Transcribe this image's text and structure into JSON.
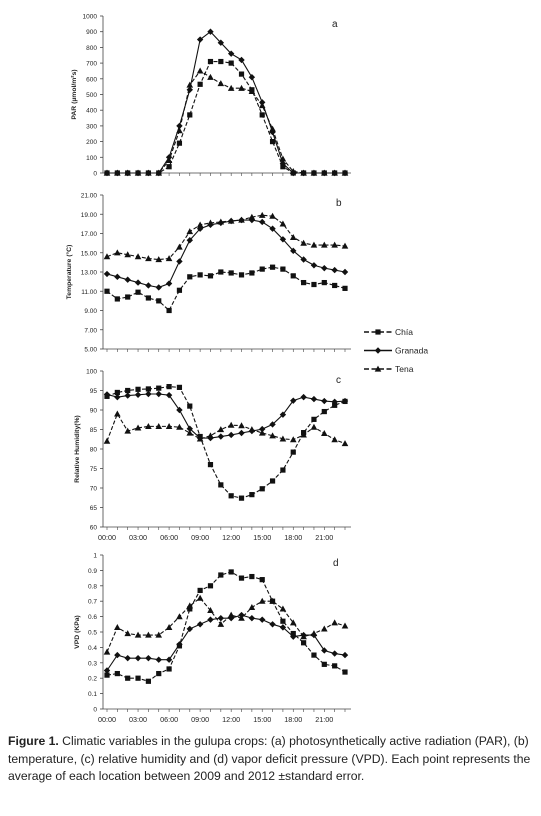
{
  "chart_data": [
    {
      "type": "line",
      "panel_label": "a",
      "ylabel": "PAR (µmol/m²s)",
      "ylim": [
        0,
        1000
      ],
      "yticks": [
        0,
        100,
        200,
        300,
        400,
        500,
        600,
        700,
        800,
        900,
        1000
      ],
      "x": [
        0,
        1,
        2,
        3,
        4,
        5,
        6,
        7,
        8,
        9,
        10,
        11,
        12,
        13,
        14,
        15,
        16,
        17,
        18,
        19,
        20,
        21,
        22,
        23
      ],
      "series": [
        {
          "name": "Chía",
          "marker": "square",
          "dash": true,
          "values": [
            0,
            0,
            0,
            0,
            0,
            0,
            40,
            190,
            370,
            565,
            710,
            710,
            700,
            630,
            530,
            370,
            200,
            40,
            0,
            0,
            0,
            0,
            0,
            0
          ]
        },
        {
          "name": "Granada",
          "marker": "diamond",
          "dash": false,
          "values": [
            0,
            0,
            0,
            0,
            0,
            0,
            100,
            300,
            530,
            850,
            900,
            830,
            760,
            720,
            610,
            450,
            260,
            60,
            0,
            0,
            0,
            0,
            0,
            0
          ]
        },
        {
          "name": "Tena",
          "marker": "triangle",
          "dash": true,
          "values": [
            0,
            0,
            0,
            0,
            0,
            0,
            80,
            270,
            560,
            650,
            610,
            570,
            540,
            540,
            520,
            430,
            280,
            90,
            10,
            0,
            0,
            0,
            0,
            0
          ]
        }
      ]
    },
    {
      "type": "line",
      "panel_label": "b",
      "ylabel": "Temperature (°C)",
      "ylim": [
        5,
        21
      ],
      "yticks": [
        "5.00",
        "7.00",
        "9.00",
        "11.00",
        "13.00",
        "15.00",
        "17.00",
        "19.00",
        "21.00"
      ],
      "x": [
        0,
        1,
        2,
        3,
        4,
        5,
        6,
        7,
        8,
        9,
        10,
        11,
        12,
        13,
        14,
        15,
        16,
        17,
        18,
        19,
        20,
        21,
        22,
        23
      ],
      "series": [
        {
          "name": "Chía",
          "marker": "square",
          "dash": true,
          "values": [
            11.0,
            10.2,
            10.4,
            10.9,
            10.3,
            10.0,
            9.0,
            11.1,
            12.5,
            12.7,
            12.6,
            13.0,
            12.9,
            12.7,
            12.9,
            13.3,
            13.5,
            13.3,
            12.6,
            11.9,
            11.7,
            11.9,
            11.6,
            11.3
          ]
        },
        {
          "name": "Granada",
          "marker": "diamond",
          "dash": false,
          "values": [
            12.8,
            12.5,
            12.2,
            11.9,
            11.6,
            11.4,
            11.8,
            14.1,
            16.3,
            17.5,
            17.9,
            18.1,
            18.3,
            18.4,
            18.4,
            18.2,
            17.5,
            16.4,
            15.2,
            14.3,
            13.7,
            13.4,
            13.2,
            13.0
          ]
        },
        {
          "name": "Tena",
          "marker": "triangle",
          "dash": true,
          "values": [
            14.6,
            15.0,
            14.8,
            14.6,
            14.4,
            14.3,
            14.4,
            15.6,
            17.2,
            17.9,
            18.1,
            18.2,
            18.3,
            18.4,
            18.7,
            18.9,
            18.8,
            18.0,
            16.6,
            16.0,
            15.8,
            15.8,
            15.8,
            15.7
          ]
        }
      ]
    },
    {
      "type": "line",
      "panel_label": "c",
      "ylabel": "Relative Humidity(%)",
      "ylim": [
        60,
        100
      ],
      "yticks": [
        60,
        65,
        70,
        75,
        80,
        85,
        90,
        95,
        100
      ],
      "x": [
        0,
        1,
        2,
        3,
        4,
        5,
        6,
        7,
        8,
        9,
        10,
        11,
        12,
        13,
        14,
        15,
        16,
        17,
        18,
        19,
        20,
        21,
        22,
        23
      ],
      "xticks": [
        "00:00",
        "03:00",
        "06:00",
        "09:00",
        "12:00",
        "15:00",
        "18:00",
        "21:00"
      ],
      "series": [
        {
          "name": "Chía",
          "marker": "square",
          "dash": true,
          "values": [
            93.5,
            94.5,
            95.0,
            95.3,
            95.4,
            95.6,
            96.0,
            95.8,
            91.0,
            83.2,
            76.0,
            70.8,
            68.0,
            67.4,
            68.3,
            69.8,
            71.8,
            74.6,
            79.2,
            84.2,
            87.6,
            89.6,
            91.2,
            92.2
          ]
        },
        {
          "name": "Granada",
          "marker": "diamond",
          "dash": false,
          "values": [
            94.0,
            93.3,
            93.7,
            93.9,
            94.1,
            94.1,
            93.8,
            90.0,
            85.2,
            82.8,
            82.8,
            83.2,
            83.6,
            84.1,
            84.6,
            85.1,
            86.3,
            88.8,
            92.4,
            93.3,
            92.8,
            92.3,
            92.1,
            92.3
          ]
        },
        {
          "name": "Tena",
          "marker": "triangle",
          "dash": true,
          "values": [
            82.0,
            89.0,
            84.6,
            85.4,
            85.8,
            85.8,
            85.8,
            85.6,
            84.1,
            82.6,
            83.4,
            85.0,
            86.1,
            86.0,
            85.0,
            84.1,
            83.4,
            82.6,
            82.4,
            83.6,
            85.6,
            84.0,
            82.4,
            81.4
          ]
        }
      ]
    },
    {
      "type": "line",
      "panel_label": "d",
      "ylabel": "VPD (KPa)",
      "ylim": [
        0,
        1
      ],
      "yticks": [
        "0",
        "0.1",
        "0.2",
        "0.3",
        "0.4",
        "0.5",
        "0.6",
        "0.7",
        "0.8",
        "0.9",
        "1"
      ],
      "x": [
        0,
        1,
        2,
        3,
        4,
        5,
        6,
        7,
        8,
        9,
        10,
        11,
        12,
        13,
        14,
        15,
        16,
        17,
        18,
        19,
        20,
        21,
        22,
        23
      ],
      "xticks": [
        "00:00",
        "03:00",
        "06:00",
        "09:00",
        "12:00",
        "15:00",
        "18:00",
        "21:00"
      ],
      "series": [
        {
          "name": "Chía",
          "marker": "square",
          "dash": true,
          "values": [
            0.22,
            0.23,
            0.2,
            0.2,
            0.18,
            0.23,
            0.26,
            0.41,
            0.65,
            0.77,
            0.8,
            0.87,
            0.89,
            0.85,
            0.86,
            0.84,
            0.7,
            0.57,
            0.49,
            0.43,
            0.35,
            0.29,
            0.28,
            0.24
          ]
        },
        {
          "name": "Granada",
          "marker": "diamond",
          "dash": false,
          "values": [
            0.25,
            0.35,
            0.33,
            0.33,
            0.33,
            0.32,
            0.32,
            0.42,
            0.52,
            0.55,
            0.58,
            0.59,
            0.59,
            0.61,
            0.59,
            0.58,
            0.55,
            0.53,
            0.47,
            0.48,
            0.48,
            0.38,
            0.36,
            0.35
          ]
        },
        {
          "name": "Tena",
          "marker": "triangle",
          "dash": true,
          "values": [
            0.37,
            0.53,
            0.49,
            0.48,
            0.48,
            0.48,
            0.53,
            0.6,
            0.67,
            0.72,
            0.64,
            0.55,
            0.61,
            0.59,
            0.66,
            0.7,
            0.7,
            0.65,
            0.56,
            0.47,
            0.49,
            0.52,
            0.56,
            0.54
          ]
        }
      ]
    }
  ],
  "legend": [
    "Chía",
    "Granada",
    "Tena"
  ],
  "caption": {
    "label": "Figure 1.",
    "text": " Climatic variables in the gulupa crops: (a) photosynthetically active radiation (PAR), (b) temperature, (c) relative humidity and (d) vapor deficit pressure (VPD). Each point represents the average of each location between 2009 and 2012 ±standard error."
  }
}
